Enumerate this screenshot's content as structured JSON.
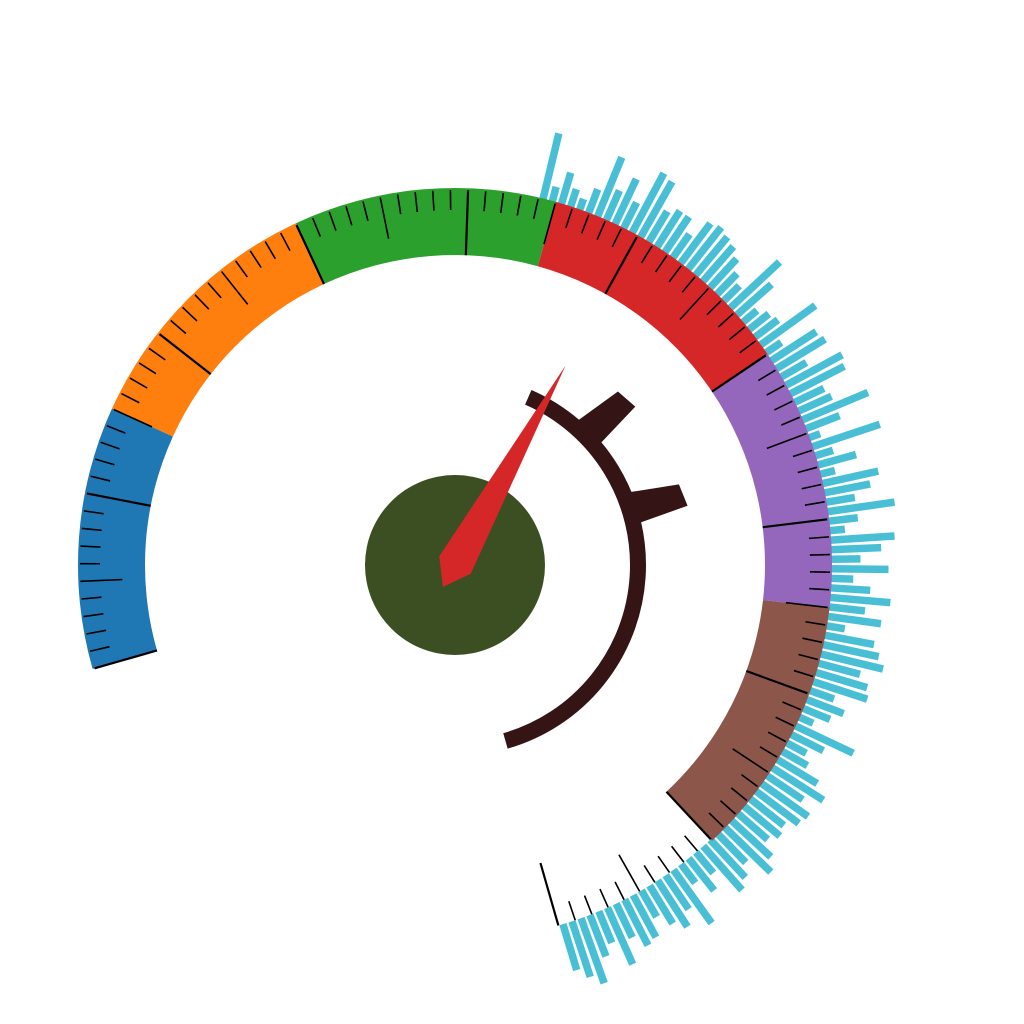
{
  "chart_data": {
    "type": "gauge",
    "title": "",
    "value": 50,
    "range": [
      0,
      100
    ],
    "bands": [
      {
        "from": 0,
        "to": 15,
        "color": "#1f77b4"
      },
      {
        "from": 15,
        "to": 30,
        "color": "#ff7f0e"
      },
      {
        "from": 30,
        "to": 45,
        "color": "#2ca02c"
      },
      {
        "from": 45,
        "to": 60,
        "color": "#d62728"
      },
      {
        "from": 60,
        "to": 75,
        "color": "#9467bd"
      },
      {
        "from": 75,
        "to": 90,
        "color": "#8c564b"
      }
    ],
    "unbanded_range": [
      90,
      100
    ],
    "ticks": {
      "major_every": 5,
      "minor_every": 1,
      "shown": true,
      "tick_labels_shown": false
    },
    "needle": {
      "value": 50,
      "color": "#d62728"
    },
    "hub": {
      "color": "#3b4f22"
    },
    "inner_arc": {
      "color": "#341414",
      "range": [
        48,
        100
      ],
      "markers": [
        {
          "value": 56,
          "shape": "triangle"
        },
        {
          "value": 66,
          "shape": "triangle"
        }
      ]
    },
    "outer_bars": {
      "color": "#49bfd6",
      "range": [
        44,
        100
      ],
      "values": [
        0.9,
        0.15,
        0.4,
        0.2,
        0.1,
        0.3,
        0.85,
        0.4,
        0.65,
        0.35,
        0.9,
        0.85,
        0.45,
        0.55,
        0.55,
        0.35,
        0.65,
        0.7,
        0.65,
        0.6,
        0.5,
        0.35,
        0.25,
        0.9,
        0.6,
        0.2,
        0.3,
        0.35,
        0.9,
        0.2,
        0.7,
        0.75,
        0.35,
        0.85,
        0.8,
        0.4,
        0.45,
        0.95,
        0.45,
        0.1,
        0.95,
        0.2,
        0.5,
        0.15,
        0.75,
        0.6,
        0.35,
        0.9,
        0.35,
        0.15,
        0.85,
        0.65,
        0.35,
        0.75,
        0.25,
        0.5,
        0.8,
        0.45,
        0.7,
        0.2,
        0.65,
        0.75,
        0.85,
        0.55,
        0.7,
        0.75,
        0.3,
        0.5,
        0.35,
        0.15,
        0.85,
        0.45,
        0.25,
        0.35,
        0.6,
        0.8,
        0.55,
        0.75,
        0.7,
        0.55,
        0.6,
        0.5,
        0.7,
        0.85,
        0.5,
        0.65,
        0.75,
        0.3,
        0.5,
        0.25,
        0.85,
        0.5,
        0.7,
        0.55,
        0.35,
        0.6,
        0.65,
        0.45,
        0.8,
        0.4,
        0.55,
        0.9,
        0.75,
        0.6
      ]
    }
  }
}
